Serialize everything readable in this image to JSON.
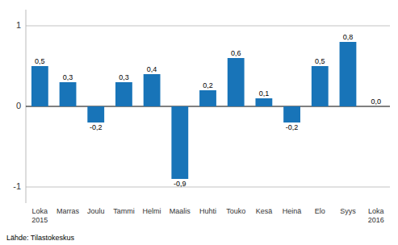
{
  "chart_data": {
    "type": "bar",
    "categories": [
      "Loka\n2015",
      "Marras",
      "Joulu",
      "Tammi",
      "Helmi",
      "Maalis",
      "Huhti",
      "Touko",
      "Kesä",
      "Heinä",
      "Elo",
      "Syys",
      "Loka\n2016"
    ],
    "values": [
      0.5,
      0.3,
      -0.2,
      0.3,
      0.4,
      -0.9,
      0.2,
      0.6,
      0.1,
      -0.2,
      0.5,
      0.8,
      0.0
    ],
    "value_labels": [
      "0,5",
      "0,3",
      "-0,2",
      "0,3",
      "0,4",
      "-0,9",
      "0,2",
      "0,6",
      "0,1",
      "-0,2",
      "0,5",
      "0,8",
      "0,0"
    ],
    "color": "#1874b8",
    "ylim": [
      -1.2,
      1.2
    ],
    "yticks": [
      -1,
      0,
      1
    ],
    "grid": true,
    "data_labels": true,
    "annotations": [
      "Lähde: Tilastokeskus"
    ]
  }
}
